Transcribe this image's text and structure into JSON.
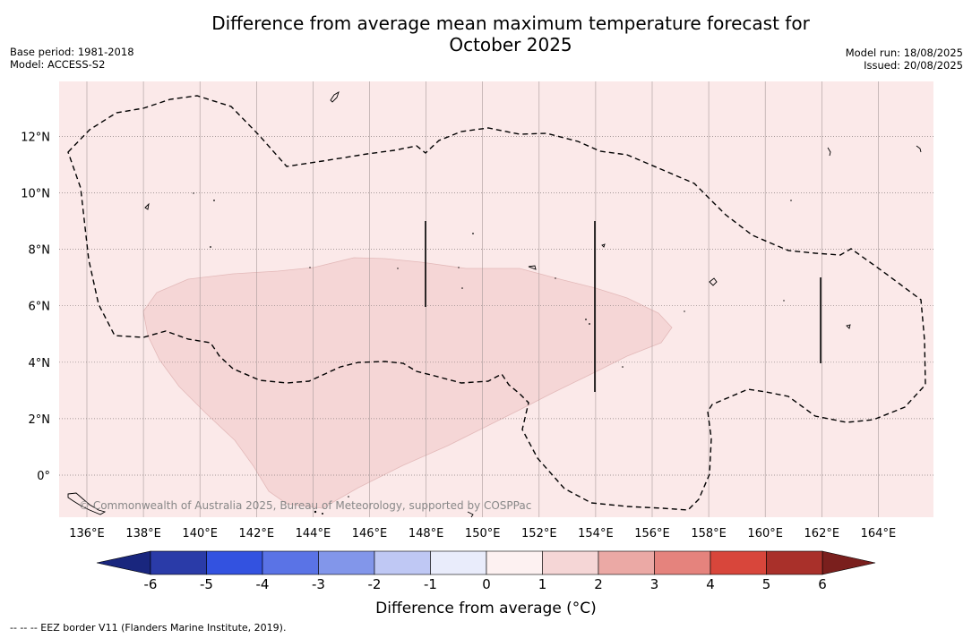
{
  "title_line1": "Difference from average mean maximum temperature forecast for",
  "title_line2": "October 2025",
  "left_meta": [
    "Base period: 1981-2018",
    "Model: ACCESS-S2"
  ],
  "right_meta": [
    "Model run: 18/08/2025",
    "Issued: 20/08/2025"
  ],
  "copyright": "© Commonwealth of Australia 2025, Bureau of Meteorology, supported by COSPPac",
  "x_ticks": [
    "136°E",
    "138°E",
    "140°E",
    "142°E",
    "144°E",
    "146°E",
    "148°E",
    "150°E",
    "152°E",
    "154°E",
    "156°E",
    "158°E",
    "160°E",
    "162°E",
    "164°E"
  ],
  "x_tick_values": [
    136,
    138,
    140,
    142,
    144,
    146,
    148,
    150,
    152,
    154,
    156,
    158,
    160,
    162,
    164
  ],
  "y_ticks": [
    "12°N",
    "10°N",
    "8°N",
    "6°N",
    "4°N",
    "2°N",
    "0°"
  ],
  "y_tick_values": [
    12,
    10,
    8,
    6,
    4,
    2,
    0
  ],
  "extent": {
    "lon": [
      135.0,
      166.0
    ],
    "lat": [
      -1.5,
      14.0
    ]
  },
  "colorbar": {
    "title": "Difference from average (°C)",
    "tick_labels": [
      "-6",
      "-5",
      "-4",
      "-3",
      "-2",
      "-1",
      "0",
      "1",
      "2",
      "3",
      "4",
      "5",
      "6"
    ],
    "colors": [
      "#2a3ba8",
      "#3352e0",
      "#5a73e6",
      "#8296ea",
      "#bfc8f4",
      "#e9ecfb",
      "#fdf1f1",
      "#f5d6d6",
      "#eba9a5",
      "#e5837d",
      "#d8463b",
      "#a9302a"
    ],
    "under_color": "#19267e",
    "over_color": "#7a1f1d"
  },
  "map_colors": {
    "background_1_2": "#fbe9e9",
    "shaded_2_3": "#f5d6d6"
  },
  "footnote": "--  --  -- EEZ border V11 (Flanders Marine Institute, 2019)."
}
